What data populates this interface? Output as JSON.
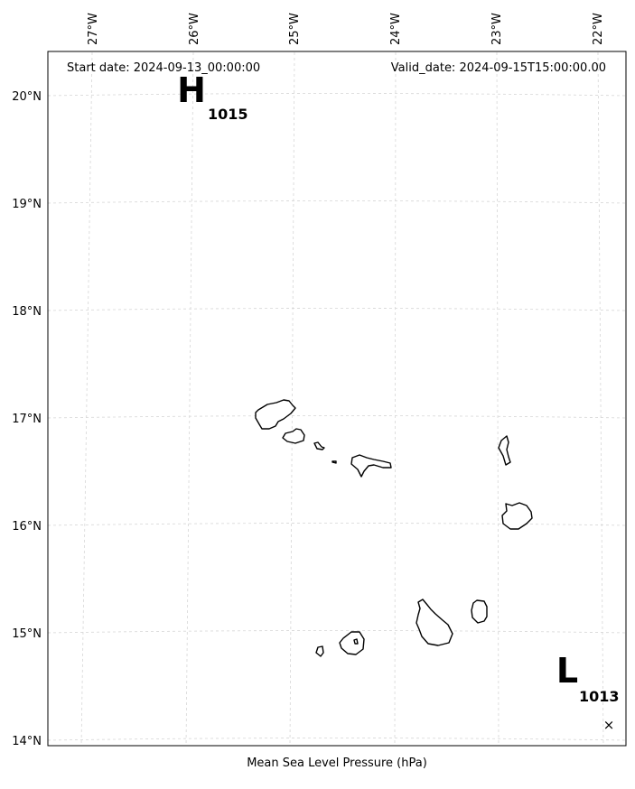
{
  "header": {
    "start_date": "Start date: 2024-09-13_00:00:00",
    "valid_date": "Valid_date: 2024-09-15T15:00:00.00"
  },
  "axes": {
    "lon_labels": [
      "27°W",
      "26°W",
      "25°W",
      "24°W",
      "23°W",
      "22°W"
    ],
    "lat_labels": [
      "20°N",
      "19°N",
      "18°N",
      "17°N",
      "16°N",
      "15°N",
      "14°N"
    ]
  },
  "pressure_centers": [
    {
      "letter": "H",
      "value": "1015",
      "type": "high"
    },
    {
      "letter": "L",
      "value": "1013",
      "type": "low"
    }
  ],
  "marker": {
    "symbol": "×"
  },
  "caption": "Mean Sea Level Pressure (hPa)"
}
